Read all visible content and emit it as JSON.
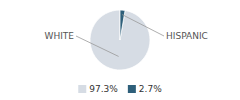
{
  "chart_data": {
    "type": "pie",
    "categories": [
      "WHITE",
      "HISPANIC"
    ],
    "values": [
      97.3,
      2.7
    ],
    "value_labels": [
      "97.3%",
      "2.7%"
    ],
    "colors": [
      "#d6dce4",
      "#2e5f7a"
    ],
    "legend": "bottom"
  }
}
